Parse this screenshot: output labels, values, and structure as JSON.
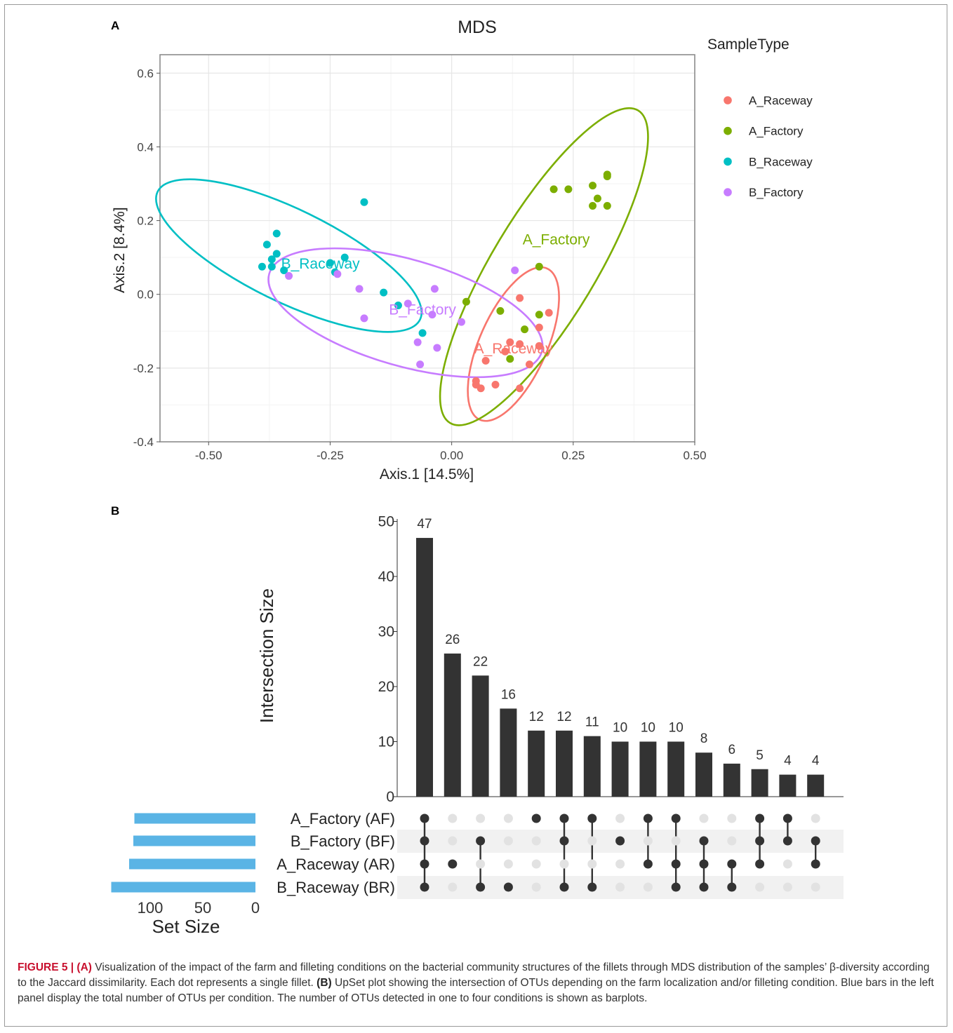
{
  "panels": {
    "a_label": "A",
    "b_label": "B"
  },
  "colors": {
    "A_Raceway": "#f8766d",
    "A_Factory": "#7cae00",
    "B_Raceway": "#00bfc4",
    "B_Factory": "#c77cff",
    "set_bar": "#5ab4e5",
    "bar": "#333333",
    "dot_off": "#e2e2e2"
  },
  "chart_data": [
    {
      "type": "scatter",
      "title": "MDS",
      "xlabel": "Axis.1   [14.5%]",
      "ylabel": "Axis.2   [8.4%]",
      "xlim": [
        -0.6,
        0.5
      ],
      "ylim": [
        -0.4,
        0.65
      ],
      "xticks": [
        "-0.50",
        "-0.25",
        "0.00",
        "0.25",
        "0.50"
      ],
      "yticks": [
        "-0.4",
        "-0.2",
        "0.0",
        "0.2",
        "0.4",
        "0.6"
      ],
      "grid": true,
      "legend": {
        "title": "SampleType",
        "position": "right",
        "entries": [
          "A_Raceway",
          "A_Factory",
          "B_Raceway",
          "B_Factory"
        ]
      },
      "series": [
        {
          "name": "A_Raceway",
          "ellipse_label": "A_Raceway",
          "points": [
            [
              0.14,
              -0.01
            ],
            [
              0.2,
              -0.05
            ],
            [
              0.18,
              -0.09
            ],
            [
              0.12,
              -0.13
            ],
            [
              0.14,
              -0.135
            ],
            [
              0.18,
              -0.14
            ],
            [
              0.11,
              -0.155
            ],
            [
              0.16,
              -0.19
            ],
            [
              0.07,
              -0.18
            ],
            [
              0.05,
              -0.235
            ],
            [
              0.05,
              -0.245
            ],
            [
              0.06,
              -0.255
            ],
            [
              0.09,
              -0.245
            ],
            [
              0.14,
              -0.255
            ]
          ]
        },
        {
          "name": "A_Factory",
          "ellipse_label": "A_Factory",
          "points": [
            [
              0.21,
              0.285
            ],
            [
              0.24,
              0.285
            ],
            [
              0.29,
              0.295
            ],
            [
              0.32,
              0.32
            ],
            [
              0.32,
              0.325
            ],
            [
              0.3,
              0.26
            ],
            [
              0.29,
              0.24
            ],
            [
              0.32,
              0.24
            ],
            [
              0.18,
              0.075
            ],
            [
              0.03,
              -0.02
            ],
            [
              0.1,
              -0.045
            ],
            [
              0.18,
              -0.055
            ],
            [
              0.15,
              -0.095
            ],
            [
              0.12,
              -0.175
            ]
          ]
        },
        {
          "name": "B_Raceway",
          "ellipse_label": "B_Raceway",
          "points": [
            [
              -0.18,
              0.25
            ],
            [
              -0.36,
              0.165
            ],
            [
              -0.38,
              0.135
            ],
            [
              -0.36,
              0.11
            ],
            [
              -0.37,
              0.095
            ],
            [
              -0.37,
              0.075
            ],
            [
              -0.39,
              0.075
            ],
            [
              -0.345,
              0.065
            ],
            [
              -0.22,
              0.1
            ],
            [
              -0.25,
              0.085
            ],
            [
              -0.24,
              0.06
            ],
            [
              -0.14,
              0.005
            ],
            [
              -0.11,
              -0.03
            ],
            [
              -0.06,
              -0.105
            ]
          ]
        },
        {
          "name": "B_Factory",
          "ellipse_label": "B_Factory",
          "points": [
            [
              0.13,
              0.065
            ],
            [
              -0.335,
              0.05
            ],
            [
              -0.235,
              0.055
            ],
            [
              -0.19,
              0.015
            ],
            [
              -0.035,
              0.015
            ],
            [
              -0.09,
              -0.025
            ],
            [
              -0.04,
              -0.055
            ],
            [
              -0.18,
              -0.065
            ],
            [
              0.02,
              -0.075
            ],
            [
              -0.07,
              -0.13
            ],
            [
              -0.03,
              -0.145
            ],
            [
              -0.065,
              -0.19
            ]
          ]
        }
      ]
    },
    {
      "type": "bar",
      "ylabel": "Intersection Size",
      "ylim": [
        0,
        50
      ],
      "yticks": [
        "0",
        "10",
        "20",
        "30",
        "40",
        "50"
      ],
      "values": [
        47,
        26,
        22,
        16,
        12,
        12,
        11,
        10,
        10,
        10,
        8,
        6,
        5,
        4,
        4
      ],
      "sets": [
        "A_Factory (AF)",
        "B_Factory (BF)",
        "A_Raceway (AR)",
        "B_Raceway (BR)"
      ],
      "membership": [
        [
          1,
          1,
          1,
          1
        ],
        [
          0,
          0,
          1,
          0
        ],
        [
          0,
          1,
          0,
          1
        ],
        [
          0,
          0,
          0,
          1
        ],
        [
          1,
          0,
          0,
          0
        ],
        [
          1,
          1,
          0,
          1
        ],
        [
          1,
          0,
          0,
          1
        ],
        [
          0,
          1,
          0,
          0
        ],
        [
          1,
          0,
          1,
          0
        ],
        [
          1,
          0,
          1,
          1
        ],
        [
          0,
          1,
          1,
          1
        ],
        [
          0,
          0,
          1,
          1
        ],
        [
          1,
          1,
          1,
          0
        ],
        [
          1,
          1,
          0,
          0
        ],
        [
          0,
          1,
          1,
          0
        ]
      ],
      "set_size_label": "Set Size",
      "set_sizes": [
        115,
        116,
        120,
        137
      ],
      "set_size_ticks": [
        "100",
        "50",
        "0"
      ]
    }
  ],
  "caption": {
    "fig_label": "FIGURE 5 | (A)",
    "part_a": " Visualization of the impact of the farm and filleting conditions on the bacterial community structures of the fillets through MDS distribution of the samples’ β-diversity according to the Jaccard dissimilarity. Each dot represents a single fillet. ",
    "b_label": "(B)",
    "part_b": " UpSet plot showing the intersection of OTUs depending on the farm localization and/or filleting condition. Blue bars in the left panel display the total number of OTUs per condition. The number of OTUs detected in one to four conditions is shown as barplots."
  }
}
